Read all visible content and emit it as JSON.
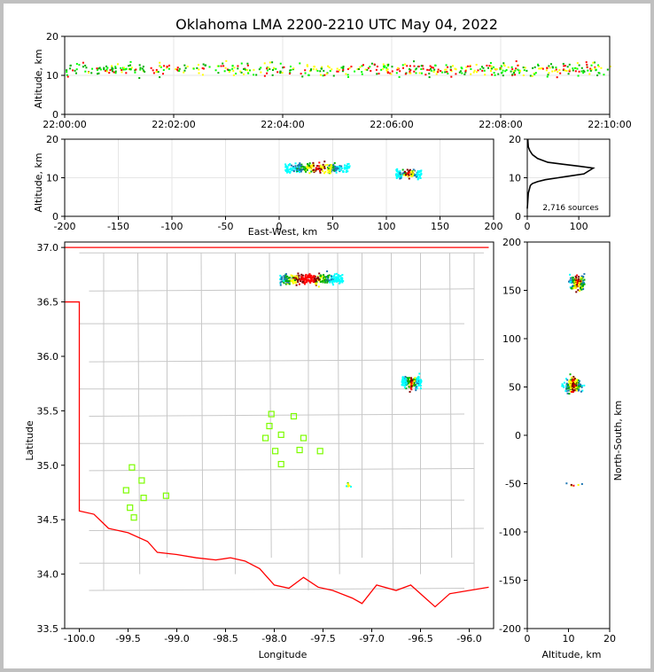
{
  "title": "Oklahoma LMA 2200-2210 UTC May 04, 2022",
  "colors": {
    "state_border": "#ff0000",
    "county_lines": "#c8c8c8",
    "stations": "#7cfc00",
    "grid": "#e6e6e6"
  },
  "chart_data": [
    {
      "id": "time-altitude",
      "type": "scatter",
      "ylabel": "Altitude, km",
      "xlim": [
        "22:00:00",
        "22:10:00"
      ],
      "ylim": [
        0,
        20
      ],
      "x_ticks": [
        "22:00:00",
        "22:02:00",
        "22:04:00",
        "22:06:00",
        "22:08:00",
        "22:10:00"
      ],
      "y_ticks": [
        0,
        10,
        20
      ],
      "grid": true,
      "density": {
        "center_altitude_km": 11.5,
        "spread_km": 3,
        "color_scale": [
          "#00ff00",
          "#ffff00",
          "#ff0000",
          "#00b000"
        ]
      }
    },
    {
      "id": "ew-altitude",
      "type": "scatter",
      "xlabel": "East-West, km",
      "ylabel": "Altitude, km",
      "xlim": [
        -200,
        200
      ],
      "ylim": [
        0,
        20
      ],
      "x_ticks": [
        -200,
        -150,
        -100,
        -50,
        0,
        50,
        100,
        150,
        200
      ],
      "y_ticks": [
        0,
        10,
        20
      ],
      "grid": true,
      "clusters": [
        {
          "x_range": [
            5,
            65
          ],
          "alt_center": 12.5,
          "alt_spread": 1.5
        },
        {
          "x_range": [
            108,
            132
          ],
          "alt_center": 11,
          "alt_spread": 1.5
        }
      ]
    },
    {
      "id": "altitude-histogram",
      "type": "line",
      "xlim": [
        0,
        160
      ],
      "ylim": [
        0,
        20
      ],
      "x_ticks": [
        0,
        100
      ],
      "y_ticks": [
        0,
        10,
        20
      ],
      "annotation": "2,716 sources",
      "x": [
        0,
        1,
        2,
        4,
        6,
        10,
        20,
        35,
        60,
        85,
        110,
        128,
        100,
        70,
        40,
        20,
        10,
        5,
        2,
        1
      ],
      "y": [
        2,
        4,
        6,
        7,
        8,
        8.5,
        9,
        9.5,
        10,
        10.5,
        11,
        12.5,
        13,
        13.5,
        14,
        15,
        16,
        17,
        18,
        20
      ]
    },
    {
      "id": "plan-view",
      "type": "scatter",
      "xlabel": "Longitude",
      "ylabel": "Latitude",
      "xlim": [
        -100.15,
        -95.75
      ],
      "ylim": [
        33.5,
        37.05
      ],
      "x_ticks": [
        "-100.0",
        "-99.5",
        "-99.0",
        "-98.5",
        "-98.0",
        "-97.5",
        "-97.0",
        "-96.5",
        "-96.0"
      ],
      "y_ticks": [
        "33.5",
        "34.0",
        "34.5",
        "35.0",
        "35.5",
        "36.0",
        "36.5",
        "37.0"
      ],
      "stations": [
        [
          -99.46,
          34.98
        ],
        [
          -99.36,
          34.86
        ],
        [
          -99.52,
          34.77
        ],
        [
          -99.34,
          34.7
        ],
        [
          -99.48,
          34.61
        ],
        [
          -99.44,
          34.52
        ],
        [
          -99.11,
          34.72
        ],
        [
          -98.03,
          35.47
        ],
        [
          -97.8,
          35.45
        ],
        [
          -98.05,
          35.36
        ],
        [
          -98.09,
          35.25
        ],
        [
          -97.93,
          35.28
        ],
        [
          -97.7,
          35.25
        ],
        [
          -97.99,
          35.13
        ],
        [
          -97.74,
          35.14
        ],
        [
          -97.53,
          35.13
        ],
        [
          -97.93,
          35.01
        ]
      ],
      "clusters": [
        {
          "lon_range": [
            -97.95,
            -97.3
          ],
          "lat_center": 36.71,
          "lat_spread": 0.06
        },
        {
          "lon_range": [
            -96.7,
            -96.5
          ],
          "lat_center": 35.76,
          "lat_spread": 0.07
        },
        {
          "lon_range": [
            -97.27,
            -97.22
          ],
          "lat_center": 34.82,
          "lat_spread": 0.02
        }
      ]
    },
    {
      "id": "ns-altitude",
      "type": "scatter",
      "xlabel": "Altitude, km",
      "ylabel": "North-South, km",
      "xlim": [
        0,
        20
      ],
      "ylim": [
        -200,
        200
      ],
      "x_ticks": [
        0,
        10,
        20
      ],
      "y_ticks": [
        -200,
        -150,
        -100,
        -50,
        0,
        50,
        100,
        150,
        200
      ],
      "clusters": [
        {
          "ns_center": 158,
          "ns_spread": 10,
          "alt_center": 12
        },
        {
          "ns_center": 52,
          "ns_spread": 10,
          "alt_center": 11
        },
        {
          "ns_center": -51,
          "ns_spread": 2,
          "alt_center": 11
        }
      ]
    }
  ]
}
